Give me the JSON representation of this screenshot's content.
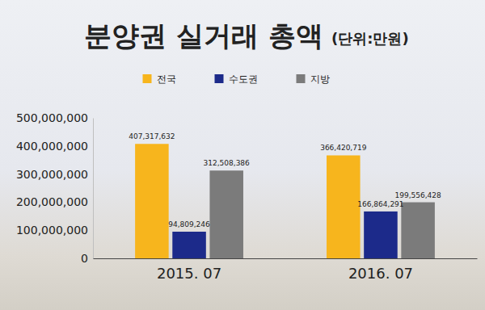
{
  "chart_data": {
    "type": "bar",
    "title": "분양권 실거래 총액",
    "subtitle": "(단위:만원)",
    "categories": [
      "2015. 07",
      "2016. 07"
    ],
    "series": [
      {
        "name": "전국",
        "color": "#f7b51d",
        "values": [
          407317632,
          366420719
        ],
        "value_labels": [
          "407,317,632",
          "366,420,719"
        ]
      },
      {
        "name": "수도권",
        "color": "#1c2a8a",
        "values": [
          94809246,
          166864291
        ],
        "value_labels": [
          "94,809,246",
          "166,864,291"
        ]
      },
      {
        "name": "지방",
        "color": "#7b7b7b",
        "values": [
          312508386,
          199556428
        ],
        "value_labels": [
          "312,508,386",
          "199,556,428"
        ]
      }
    ],
    "ylim": [
      0,
      500000000
    ],
    "yticks": [
      0,
      {
        "value": 100000000,
        "label": "100,000,000"
      },
      {
        "value": 200000000,
        "label": "200,000,000"
      },
      {
        "value": 300000000,
        "label": "300,000,000"
      },
      {
        "value": 400000000,
        "label": "400,000,000"
      },
      {
        "value": 500000000,
        "label": "500,000,000"
      }
    ],
    "grid": false,
    "legend": "top",
    "data_labels": true
  }
}
